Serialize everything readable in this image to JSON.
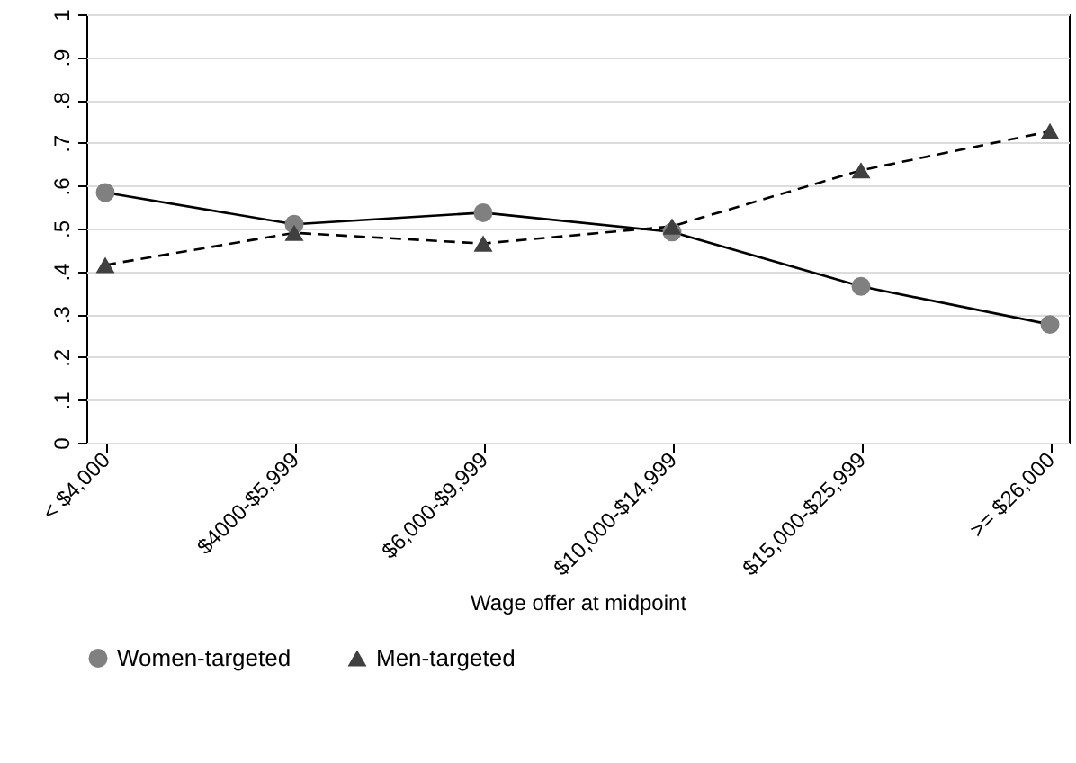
{
  "chart_data": {
    "type": "line",
    "xlabel": "Wage offer at midpoint",
    "categories": [
      "< $4,000",
      "$4000-$5,999",
      "$6,000-$9,999",
      "$10,000-$14,999",
      "$15,000-$25,999",
      ">= $26,000"
    ],
    "series": [
      {
        "name": "Women-targeted",
        "color": "#808080",
        "marker": "circle",
        "line_style": "solid",
        "values": [
          0.584,
          0.51,
          0.537,
          0.492,
          0.365,
          0.276
        ]
      },
      {
        "name": "Men-targeted",
        "color": "#404040",
        "marker": "triangle",
        "line_style": "dashed",
        "values": [
          0.415,
          0.49,
          0.465,
          0.505,
          0.636,
          0.727
        ]
      }
    ],
    "ylim": [
      0,
      1
    ],
    "yticks": [
      {
        "value": 0,
        "label": "0"
      },
      {
        "value": 0.1,
        "label": ".1"
      },
      {
        "value": 0.2,
        "label": ".2"
      },
      {
        "value": 0.3,
        "label": ".3"
      },
      {
        "value": 0.4,
        "label": ".4"
      },
      {
        "value": 0.5,
        "label": ".5"
      },
      {
        "value": 0.6,
        "label": ".6"
      },
      {
        "value": 0.7,
        "label": ".7"
      },
      {
        "value": 0.8,
        "label": ".8"
      },
      {
        "value": 0.9,
        "label": ".9"
      },
      {
        "value": 1,
        "label": "1"
      }
    ],
    "grid": "y",
    "legend": "bottom"
  }
}
